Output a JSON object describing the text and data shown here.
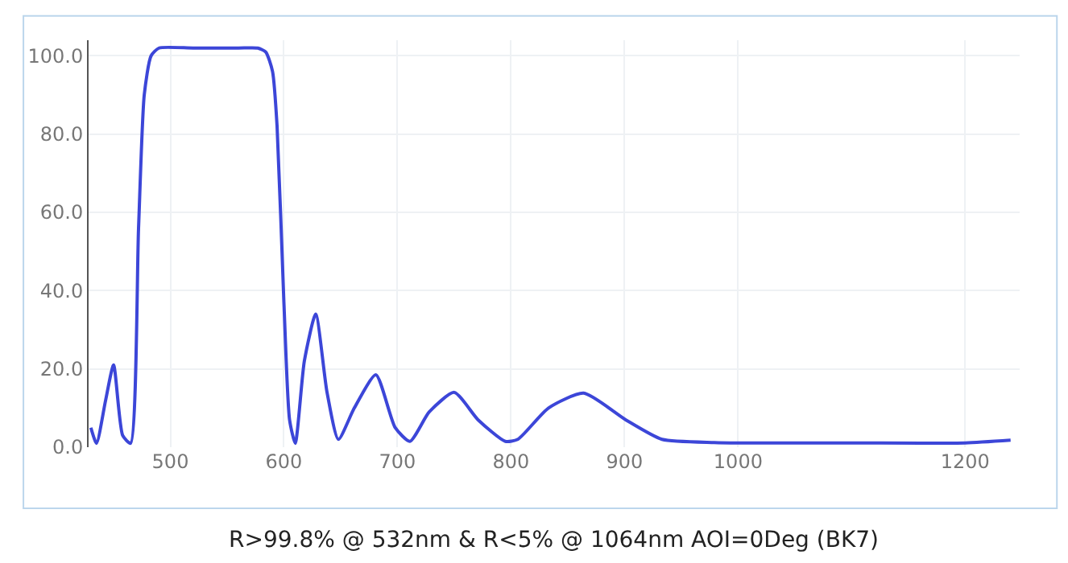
{
  "chart_data": {
    "type": "line",
    "title": "R>99.8% @ 532nm & R<5% @ 1064nm AOI=0Deg (BK7)",
    "x": [
      430,
      435,
      443,
      450,
      458,
      465,
      472,
      477,
      483,
      490,
      520,
      560,
      577,
      584,
      590,
      594,
      600,
      605,
      610,
      618,
      628,
      638,
      648,
      662,
      681,
      698,
      711,
      728,
      750,
      771,
      795,
      806,
      833,
      864,
      901,
      933,
      979,
      1000,
      1100,
      1200,
      1240
    ],
    "series": [
      {
        "color": "#3c46d8",
        "values": [
          5,
          1,
          12,
          21,
          3,
          1,
          56,
          90,
          100,
          102,
          102,
          102,
          102,
          101,
          96,
          82,
          37,
          7,
          1,
          22,
          34,
          14,
          2,
          10,
          18.5,
          5,
          1.5,
          9,
          14,
          7,
          1.5,
          2,
          10,
          13.8,
          7,
          2,
          1.2,
          1.1,
          1.1,
          1.1,
          1.8
        ]
      }
    ],
    "xlim": [
      428,
      1248
    ],
    "xticks": [
      500,
      600,
      700,
      800,
      900,
      1000,
      1200
    ],
    "ylim": [
      0,
      104
    ],
    "yticks": [
      {
        "value": 0,
        "label": "0.0"
      },
      {
        "value": 20,
        "label": "20.0"
      },
      {
        "value": 40,
        "label": "40.0"
      },
      {
        "value": 60,
        "label": "60.0"
      },
      {
        "value": 80,
        "label": "80.0"
      },
      {
        "value": 100,
        "label": "100.0"
      }
    ],
    "grid": true,
    "legend": false,
    "marker": "none",
    "line_style": "solid"
  }
}
